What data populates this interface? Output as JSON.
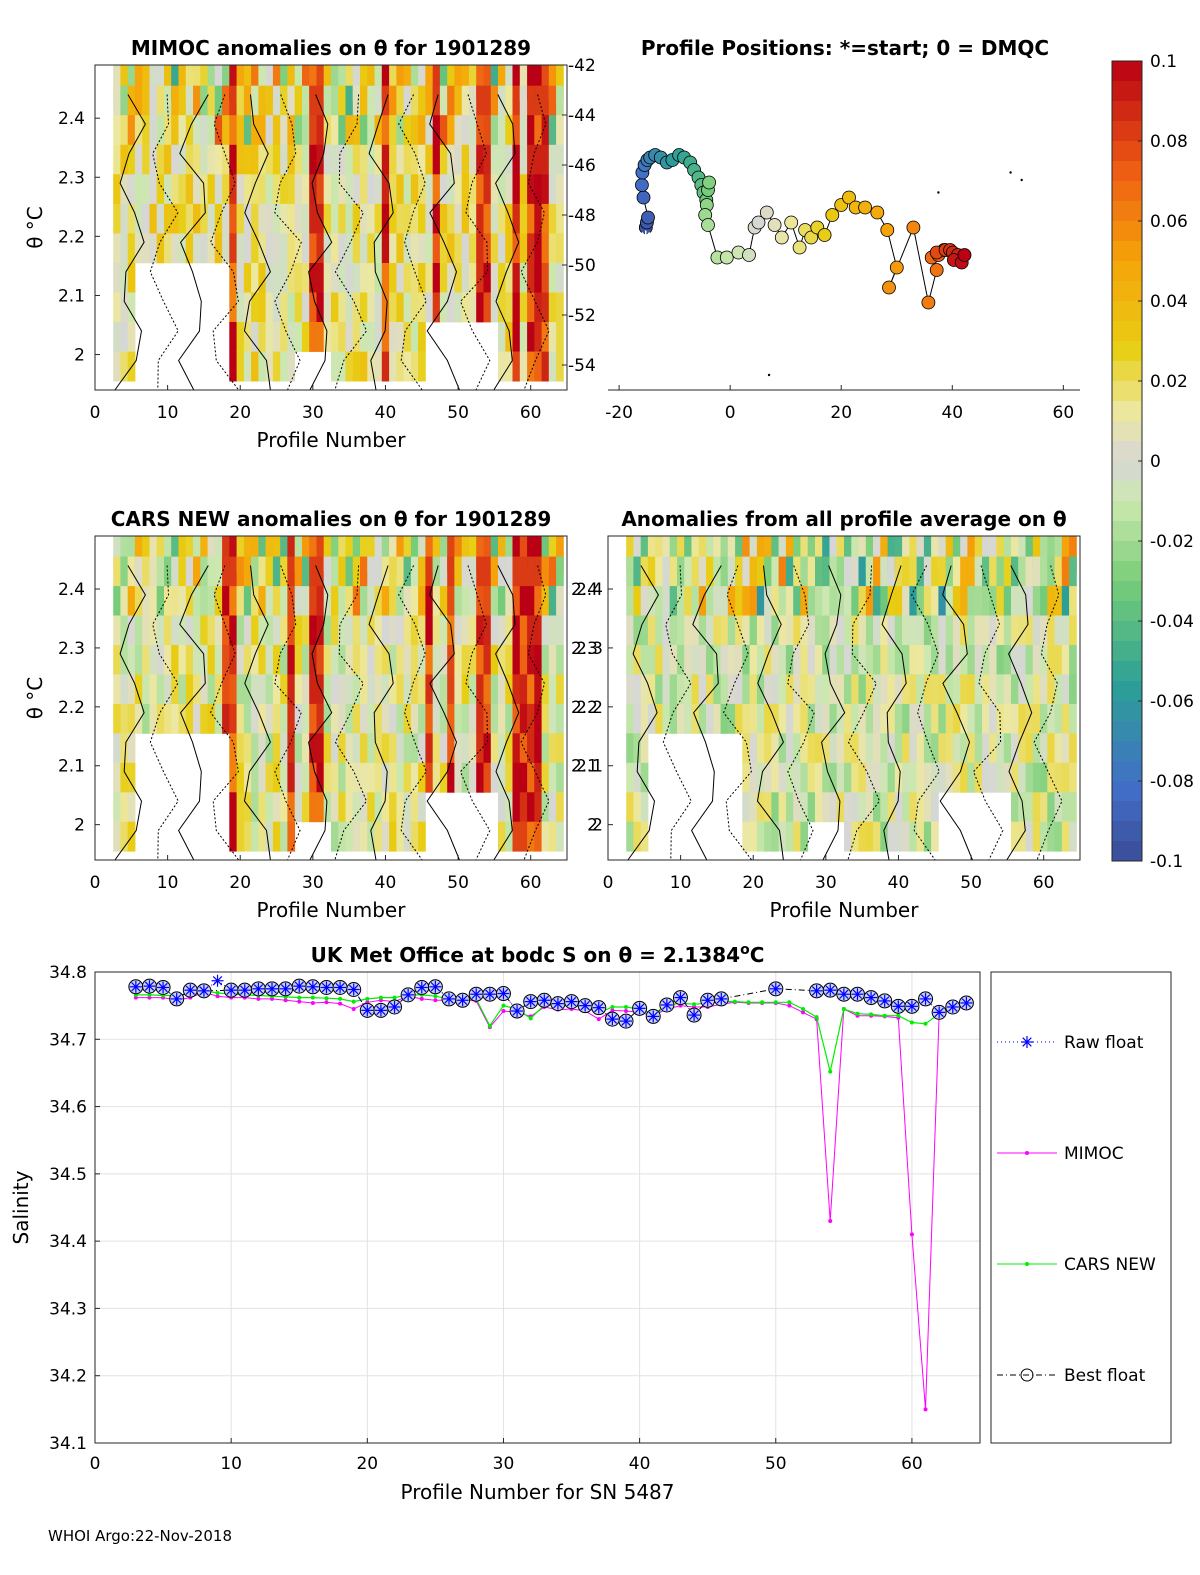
{
  "chart_data": [
    {
      "id": "mimoc",
      "type": "heatmap",
      "title": "MIMOC anomalies on θ  for 1901289",
      "xlabel": "Profile Number",
      "ylabel": "θ °C",
      "xlim": [
        0,
        65
      ],
      "ylim": [
        1.94,
        2.49
      ],
      "xticks": [
        "0",
        "10",
        "20",
        "30",
        "40",
        "50",
        "60"
      ],
      "yticks": [
        "2",
        "2.1",
        "2.2",
        "2.3",
        "2.4"
      ],
      "anomaly_bias": 0.012,
      "hot_columns": [
        19,
        30,
        31,
        40,
        47,
        53,
        54,
        58,
        60,
        61,
        62
      ]
    },
    {
      "id": "positions",
      "type": "scatter",
      "title": "Profile Positions: *=start; 0 = DMQC",
      "xlim": [
        -22,
        63
      ],
      "ylim": [
        -55,
        -42
      ],
      "xticks": [
        "-20",
        "0",
        "20",
        "40",
        "60"
      ],
      "yticks": [
        "-42",
        "-44",
        "-46",
        "-48",
        "-50",
        "-52",
        "-54"
      ],
      "lon": [
        -15.2,
        -15.0,
        -14.8,
        -15.6,
        -15.9,
        -15.8,
        -15.4,
        -14.9,
        -14.4,
        -13.5,
        -12.5,
        -11.4,
        -10.4,
        -9.2,
        -8.3,
        -7.2,
        -6.5,
        -5.7,
        -5.2,
        -4.8,
        -4.3,
        -4.0,
        -3.8,
        -4.2,
        -4.5,
        -4.0,
        -2.3,
        -0.6,
        1.5,
        3.4,
        4.4,
        5.1,
        6.6,
        8.0,
        9.3,
        11.0,
        12.5,
        13.5,
        14.6,
        15.7,
        17.0,
        18.4,
        20.0,
        21.4,
        22.6,
        24.3,
        26.5,
        28.3,
        30.0,
        28.6,
        33.0,
        35.7,
        37.2,
        36.3,
        37.5,
        38.5,
        37.2,
        38.8,
        39.6,
        40.1,
        41.0,
        40.3,
        41.7,
        42.2
      ],
      "lat": [
        -48.5,
        -48.3,
        -48.1,
        -47.3,
        -46.8,
        -46.3,
        -46.0,
        -45.8,
        -45.7,
        -45.6,
        -45.7,
        -45.9,
        -45.8,
        -45.6,
        -45.7,
        -45.9,
        -46.2,
        -46.5,
        -46.8,
        -47.1,
        -47.4,
        -47.0,
        -46.7,
        -47.6,
        -48.0,
        -48.4,
        -49.7,
        -49.7,
        -49.5,
        -49.6,
        -48.5,
        -48.3,
        -47.9,
        -48.4,
        -48.9,
        -48.3,
        -49.3,
        -48.6,
        -48.9,
        -48.5,
        -48.8,
        -48.0,
        -47.6,
        -47.3,
        -47.7,
        -47.7,
        -47.9,
        -48.6,
        -50.1,
        -50.9,
        -48.5,
        -51.5,
        -50.2,
        -49.7,
        -49.6,
        -49.4,
        -49.5,
        -49.4,
        -49.4,
        -49.5,
        -49.6,
        -49.8,
        -49.9,
        -49.6
      ],
      "colorbar": {
        "ticks": [
          "0.1",
          "0.08",
          "0.06",
          "0.04",
          "0.02",
          "0",
          "-0.02",
          "-0.04",
          "-0.06",
          "-0.08",
          "-0.1"
        ],
        "range": [
          -0.1,
          0.1
        ]
      }
    },
    {
      "id": "cars",
      "type": "heatmap",
      "title": "CARS NEW anomalies on θ for 1901289",
      "xlabel": "Profile Number",
      "ylabel": "θ °C",
      "xlim": [
        0,
        65
      ],
      "ylim": [
        1.94,
        2.49
      ],
      "xticks": [
        "0",
        "10",
        "20",
        "30",
        "40",
        "50",
        "60"
      ],
      "yticks": [
        "2",
        "2.1",
        "2.2",
        "2.3",
        "2.4"
      ],
      "anomaly_bias": 0.005,
      "hot_columns": [
        18,
        19,
        27,
        30,
        31,
        46,
        49,
        53,
        54,
        58,
        59,
        60,
        61
      ]
    },
    {
      "id": "allavg",
      "type": "heatmap",
      "title": "Anomalies from all profile average on θ",
      "xlabel": "Profile Number",
      "ylabel": "θ °C",
      "xlim": [
        0,
        65
      ],
      "ylim": [
        1.94,
        2.49
      ],
      "xticks": [
        "0",
        "10",
        "20",
        "30",
        "40",
        "50",
        "60"
      ],
      "yticks": [
        "2",
        "2.1",
        "2.2",
        "2.3",
        "2.4"
      ],
      "anomaly_bias": -0.002,
      "hot_columns": []
    },
    {
      "id": "salinity",
      "type": "line",
      "title": "UK Met Office at bodc S on θ = 2.1384°C",
      "title_main": "UK Met Office at bodc S on θ = 2.1384",
      "title_sup": "o",
      "title_end": "C",
      "xlabel": "Profile Number for SN 5487",
      "ylabel": "Salinity",
      "xlim": [
        0,
        65
      ],
      "ylim": [
        34.1,
        34.8
      ],
      "xticks": [
        "0",
        "10",
        "20",
        "30",
        "40",
        "50",
        "60"
      ],
      "yticks": [
        "34.1",
        "34.2",
        "34.3",
        "34.4",
        "34.5",
        "34.6",
        "34.7",
        "34.8"
      ],
      "x": [
        3,
        4,
        5,
        6,
        7,
        8,
        9,
        10,
        11,
        12,
        13,
        14,
        15,
        16,
        17,
        18,
        19,
        20,
        21,
        22,
        23,
        24,
        25,
        26,
        27,
        28,
        29,
        30,
        31,
        32,
        33,
        34,
        35,
        36,
        37,
        38,
        39,
        40,
        41,
        42,
        43,
        44,
        45,
        46,
        47,
        48,
        49,
        50,
        51,
        52,
        53,
        54,
        55,
        56,
        57,
        58,
        59,
        60,
        61,
        62,
        63,
        64
      ],
      "series": [
        {
          "name": "Raw float",
          "color": "#0000ff",
          "style": "dotted-star",
          "values": [
            34.778,
            34.779,
            34.777,
            34.76,
            34.773,
            34.772,
            34.787,
            34.773,
            34.773,
            34.775,
            34.775,
            34.775,
            34.779,
            34.778,
            34.777,
            34.777,
            34.774,
            34.743,
            34.743,
            34.748,
            34.766,
            34.777,
            34.778,
            34.76,
            34.758,
            34.767,
            34.767,
            34.768,
            34.742,
            34.756,
            34.758,
            34.753,
            34.756,
            34.75,
            34.747,
            34.73,
            34.727,
            34.746,
            34.734,
            34.751,
            34.762,
            34.736,
            34.758,
            34.76,
            null,
            null,
            null,
            34.775,
            null,
            null,
            34.772,
            34.773,
            34.767,
            34.767,
            34.762,
            34.757,
            34.749,
            34.749,
            34.76,
            34.74,
            34.748,
            34.754
          ]
        },
        {
          "name": "MIMOC",
          "color": "#ff00ff",
          "style": "line-dot",
          "values": [
            34.762,
            34.762,
            34.762,
            34.758,
            34.762,
            34.77,
            34.764,
            34.762,
            34.762,
            34.76,
            34.76,
            34.758,
            34.756,
            34.754,
            34.755,
            34.753,
            34.745,
            34.755,
            34.758,
            34.756,
            34.764,
            34.76,
            34.758,
            34.758,
            34.758,
            34.757,
            34.718,
            34.742,
            34.74,
            34.734,
            34.748,
            34.744,
            34.745,
            34.742,
            34.73,
            34.743,
            34.742,
            34.74,
            34.735,
            34.745,
            34.75,
            34.748,
            34.748,
            34.752,
            34.755,
            34.754,
            34.754,
            34.754,
            34.75,
            34.74,
            34.73,
            34.43,
            34.745,
            34.735,
            34.735,
            34.734,
            34.732,
            34.41,
            34.15,
            34.74,
            34.745,
            34.748
          ]
        },
        {
          "name": "CARS NEW",
          "color": "#00ee00",
          "style": "line-dot",
          "values": [
            34.766,
            34.766,
            34.765,
            34.765,
            34.768,
            34.772,
            34.769,
            34.767,
            34.766,
            34.765,
            34.764,
            34.763,
            34.762,
            34.762,
            34.761,
            34.76,
            34.756,
            34.76,
            34.762,
            34.762,
            34.766,
            34.766,
            34.764,
            34.76,
            34.757,
            34.76,
            34.72,
            34.75,
            34.745,
            34.731,
            34.751,
            34.75,
            34.75,
            34.748,
            34.739,
            34.748,
            34.748,
            34.745,
            34.738,
            34.75,
            34.754,
            34.752,
            34.754,
            34.756,
            34.756,
            34.755,
            34.755,
            34.755,
            34.755,
            34.745,
            34.733,
            34.652,
            34.745,
            34.738,
            34.737,
            34.735,
            34.735,
            34.725,
            34.723,
            34.738,
            34.746,
            34.75
          ]
        },
        {
          "name": "Best float",
          "color": "#000000",
          "style": "dashdot-circle",
          "values": [
            34.778,
            34.779,
            34.777,
            34.76,
            34.773,
            34.772,
            null,
            34.773,
            34.773,
            34.775,
            34.775,
            34.775,
            34.779,
            34.778,
            34.777,
            34.777,
            34.774,
            34.743,
            34.743,
            34.748,
            34.766,
            34.777,
            34.778,
            34.76,
            34.758,
            34.767,
            34.767,
            34.768,
            34.742,
            34.756,
            34.758,
            34.753,
            34.756,
            34.75,
            34.747,
            34.73,
            34.727,
            34.746,
            34.734,
            34.751,
            34.762,
            34.736,
            34.758,
            34.76,
            null,
            null,
            null,
            34.775,
            null,
            null,
            34.772,
            34.773,
            34.767,
            34.767,
            34.762,
            34.757,
            34.749,
            34.749,
            34.76,
            34.74,
            34.748,
            34.754
          ]
        }
      ],
      "legend": [
        "Raw float",
        "MIMOC",
        "CARS NEW",
        "Best float"
      ],
      "legend_position": "right",
      "grid": true
    }
  ],
  "footer": "WHOI Argo:22-Nov-2018"
}
